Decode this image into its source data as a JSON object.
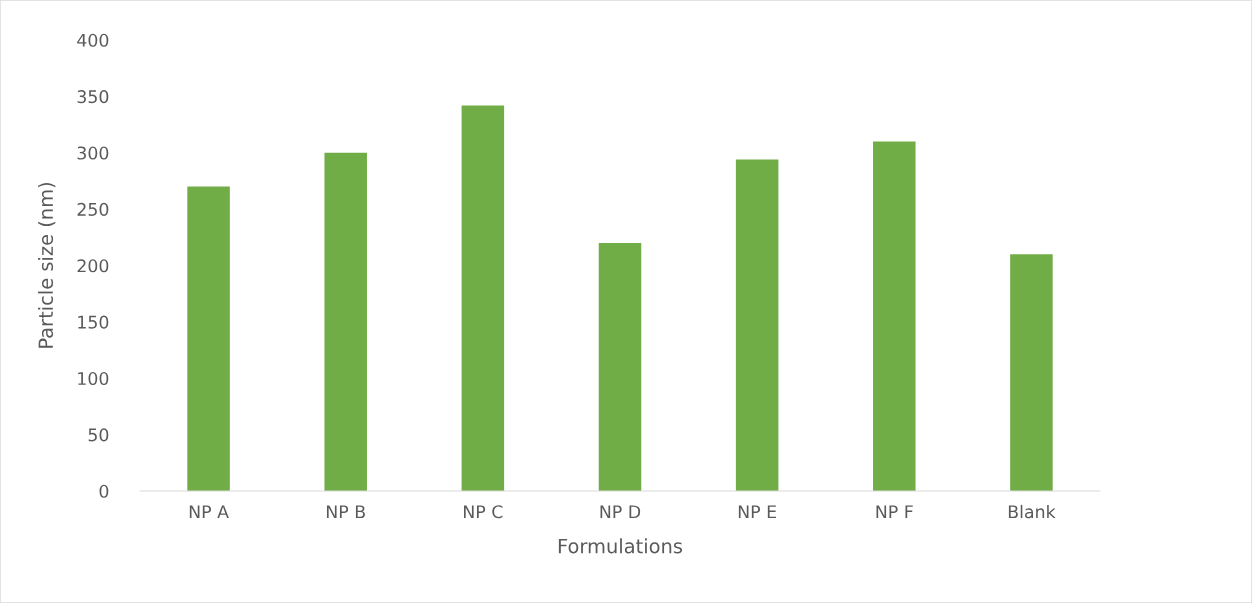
{
  "chart_data": {
    "type": "bar",
    "xlabel": "Formulations",
    "ylabel": "Particle size (nm)",
    "categories": [
      "NP A",
      "NP B",
      "NP C",
      "NP D",
      "NP E",
      "NP F",
      "Blank"
    ],
    "values": [
      270,
      300,
      342,
      220,
      294,
      310,
      210
    ],
    "color": "#70ad47",
    "ylim": [
      0,
      400
    ],
    "yticks": [
      0,
      50,
      100,
      150,
      200,
      250,
      300,
      350,
      400
    ],
    "grid": false,
    "legend": false
  }
}
